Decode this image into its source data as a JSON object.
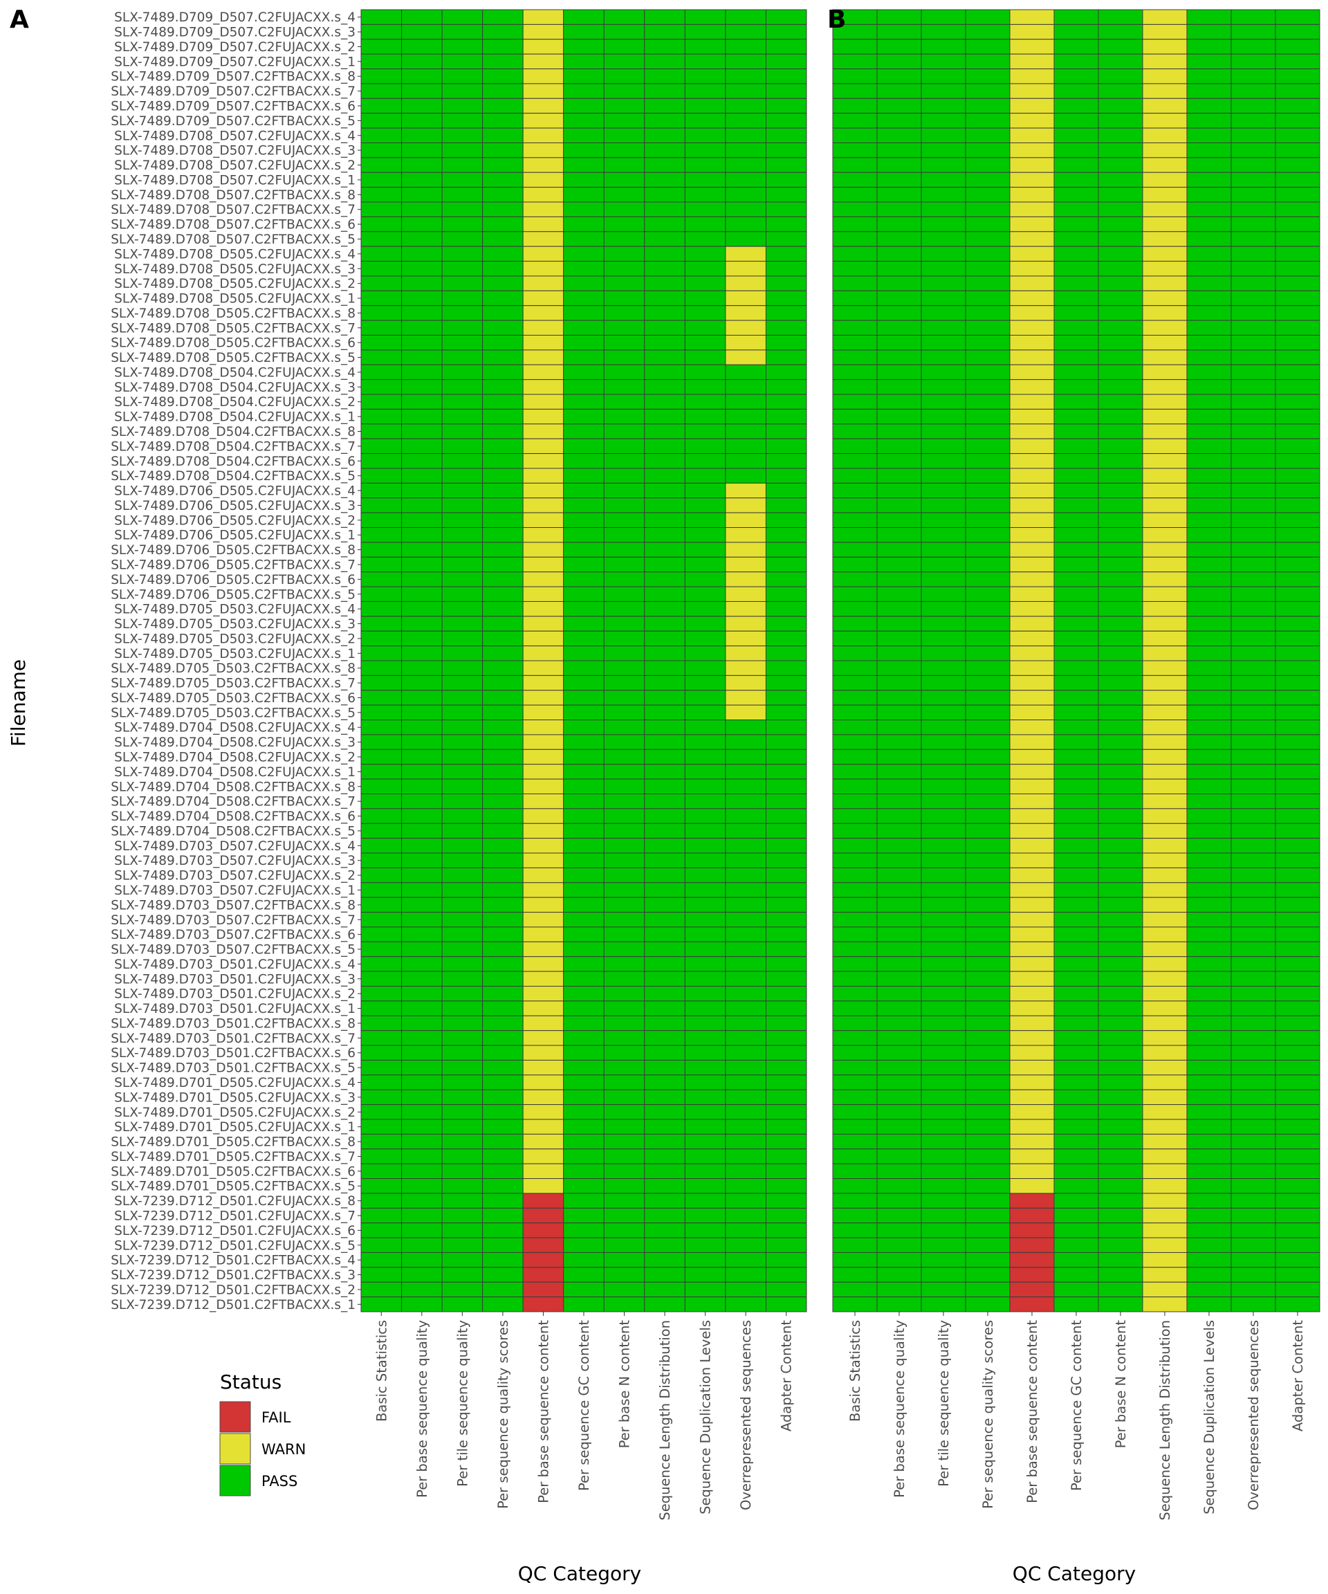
{
  "status_colors": {
    "FAIL": "#d33434",
    "WARN": "#e5e133",
    "PASS": "#00c800"
  },
  "legend": {
    "title": "Status",
    "items": [
      {
        "label": "FAIL",
        "color": "#d33434"
      },
      {
        "label": "WARN",
        "color": "#e5e133"
      },
      {
        "label": "PASS",
        "color": "#00c800"
      }
    ]
  },
  "chart_data": [
    {
      "type": "heatmap",
      "panel": "A",
      "xlabel": "QC Category",
      "ylabel": "Filename",
      "categories": [
        "Basic Statistics",
        "Per base sequence quality",
        "Per tile sequence quality",
        "Per sequence quality scores",
        "Per base sequence content",
        "Per sequence GC content",
        "Per base N content",
        "Sequence Length Distribution",
        "Sequence Duplication Levels",
        "Overrepresented sequences",
        "Adapter Content"
      ],
      "rows": [
        "SLX-7489.D709_D507.C2FUJACXX.s_4",
        "SLX-7489.D709_D507.C2FUJACXX.s_3",
        "SLX-7489.D709_D507.C2FUJACXX.s_2",
        "SLX-7489.D709_D507.C2FUJACXX.s_1",
        "SLX-7489.D709_D507.C2FTBACXX.s_8",
        "SLX-7489.D709_D507.C2FTBACXX.s_7",
        "SLX-7489.D709_D507.C2FTBACXX.s_6",
        "SLX-7489.D709_D507.C2FTBACXX.s_5",
        "SLX-7489.D708_D507.C2FUJACXX.s_4",
        "SLX-7489.D708_D507.C2FUJACXX.s_3",
        "SLX-7489.D708_D507.C2FUJACXX.s_2",
        "SLX-7489.D708_D507.C2FUJACXX.s_1",
        "SLX-7489.D708_D507.C2FTBACXX.s_8",
        "SLX-7489.D708_D507.C2FTBACXX.s_7",
        "SLX-7489.D708_D507.C2FTBACXX.s_6",
        "SLX-7489.D708_D507.C2FTBACXX.s_5",
        "SLX-7489.D708_D505.C2FUJACXX.s_4",
        "SLX-7489.D708_D505.C2FUJACXX.s_3",
        "SLX-7489.D708_D505.C2FUJACXX.s_2",
        "SLX-7489.D708_D505.C2FUJACXX.s_1",
        "SLX-7489.D708_D505.C2FTBACXX.s_8",
        "SLX-7489.D708_D505.C2FTBACXX.s_7",
        "SLX-7489.D708_D505.C2FTBACXX.s_6",
        "SLX-7489.D708_D505.C2FTBACXX.s_5",
        "SLX-7489.D708_D504.C2FUJACXX.s_4",
        "SLX-7489.D708_D504.C2FUJACXX.s_3",
        "SLX-7489.D708_D504.C2FUJACXX.s_2",
        "SLX-7489.D708_D504.C2FUJACXX.s_1",
        "SLX-7489.D708_D504.C2FTBACXX.s_8",
        "SLX-7489.D708_D504.C2FTBACXX.s_7",
        "SLX-7489.D708_D504.C2FTBACXX.s_6",
        "SLX-7489.D708_D504.C2FTBACXX.s_5",
        "SLX-7489.D706_D505.C2FUJACXX.s_4",
        "SLX-7489.D706_D505.C2FUJACXX.s_3",
        "SLX-7489.D706_D505.C2FUJACXX.s_2",
        "SLX-7489.D706_D505.C2FUJACXX.s_1",
        "SLX-7489.D706_D505.C2FTBACXX.s_8",
        "SLX-7489.D706_D505.C2FTBACXX.s_7",
        "SLX-7489.D706_D505.C2FTBACXX.s_6",
        "SLX-7489.D706_D505.C2FTBACXX.s_5",
        "SLX-7489.D705_D503.C2FUJACXX.s_4",
        "SLX-7489.D705_D503.C2FUJACXX.s_3",
        "SLX-7489.D705_D503.C2FUJACXX.s_2",
        "SLX-7489.D705_D503.C2FUJACXX.s_1",
        "SLX-7489.D705_D503.C2FTBACXX.s_8",
        "SLX-7489.D705_D503.C2FTBACXX.s_7",
        "SLX-7489.D705_D503.C2FTBACXX.s_6",
        "SLX-7489.D705_D503.C2FTBACXX.s_5",
        "SLX-7489.D704_D508.C2FUJACXX.s_4",
        "SLX-7489.D704_D508.C2FUJACXX.s_3",
        "SLX-7489.D704_D508.C2FUJACXX.s_2",
        "SLX-7489.D704_D508.C2FUJACXX.s_1",
        "SLX-7489.D704_D508.C2FTBACXX.s_8",
        "SLX-7489.D704_D508.C2FTBACXX.s_7",
        "SLX-7489.D704_D508.C2FTBACXX.s_6",
        "SLX-7489.D704_D508.C2FTBACXX.s_5",
        "SLX-7489.D703_D507.C2FUJACXX.s_4",
        "SLX-7489.D703_D507.C2FUJACXX.s_3",
        "SLX-7489.D703_D507.C2FUJACXX.s_2",
        "SLX-7489.D703_D507.C2FUJACXX.s_1",
        "SLX-7489.D703_D507.C2FTBACXX.s_8",
        "SLX-7489.D703_D507.C2FTBACXX.s_7",
        "SLX-7489.D703_D507.C2FTBACXX.s_6",
        "SLX-7489.D703_D507.C2FTBACXX.s_5",
        "SLX-7489.D703_D501.C2FUJACXX.s_4",
        "SLX-7489.D703_D501.C2FUJACXX.s_3",
        "SLX-7489.D703_D501.C2FUJACXX.s_2",
        "SLX-7489.D703_D501.C2FUJACXX.s_1",
        "SLX-7489.D703_D501.C2FTBACXX.s_8",
        "SLX-7489.D703_D501.C2FTBACXX.s_7",
        "SLX-7489.D703_D501.C2FTBACXX.s_6",
        "SLX-7489.D703_D501.C2FTBACXX.s_5",
        "SLX-7489.D701_D505.C2FUJACXX.s_4",
        "SLX-7489.D701_D505.C2FUJACXX.s_3",
        "SLX-7489.D701_D505.C2FUJACXX.s_2",
        "SLX-7489.D701_D505.C2FUJACXX.s_1",
        "SLX-7489.D701_D505.C2FTBACXX.s_8",
        "SLX-7489.D701_D505.C2FTBACXX.s_7",
        "SLX-7489.D701_D505.C2FTBACXX.s_6",
        "SLX-7489.D701_D505.C2FTBACXX.s_5",
        "SLX-7239.D712_D501.C2FUJACXX.s_8",
        "SLX-7239.D712_D501.C2FUJACXX.s_7",
        "SLX-7239.D712_D501.C2FUJACXX.s_6",
        "SLX-7239.D712_D501.C2FUJACXX.s_5",
        "SLX-7239.D712_D501.C2FTBACXX.s_4",
        "SLX-7239.D712_D501.C2FTBACXX.s_3",
        "SLX-7239.D712_D501.C2FTBACXX.s_2",
        "SLX-7239.D712_D501.C2FTBACXX.s_1"
      ],
      "default_status": "PASS",
      "exceptions": [
        {
          "category": "Per base sequence content",
          "row_from": 0,
          "row_to": 79,
          "status": "WARN"
        },
        {
          "category": "Per base sequence content",
          "row_from": 80,
          "row_to": 87,
          "status": "FAIL"
        },
        {
          "category": "Overrepresented sequences",
          "row_from": 16,
          "row_to": 23,
          "status": "WARN"
        },
        {
          "category": "Overrepresented sequences",
          "row_from": 32,
          "row_to": 47,
          "status": "WARN"
        }
      ]
    },
    {
      "type": "heatmap",
      "panel": "B",
      "xlabel": "QC Category",
      "categories": [
        "Basic Statistics",
        "Per base sequence quality",
        "Per tile sequence quality",
        "Per sequence quality scores",
        "Per base sequence content",
        "Per sequence GC content",
        "Per base N content",
        "Sequence Length Distribution",
        "Sequence Duplication Levels",
        "Overrepresented sequences",
        "Adapter Content"
      ],
      "rows_same_as_panel": "A",
      "default_status": "PASS",
      "exceptions": [
        {
          "category": "Per base sequence content",
          "row_from": 0,
          "row_to": 79,
          "status": "WARN"
        },
        {
          "category": "Per base sequence content",
          "row_from": 80,
          "row_to": 87,
          "status": "FAIL"
        },
        {
          "category": "Sequence Length Distribution",
          "row_from": 0,
          "row_to": 87,
          "status": "WARN"
        }
      ]
    }
  ]
}
